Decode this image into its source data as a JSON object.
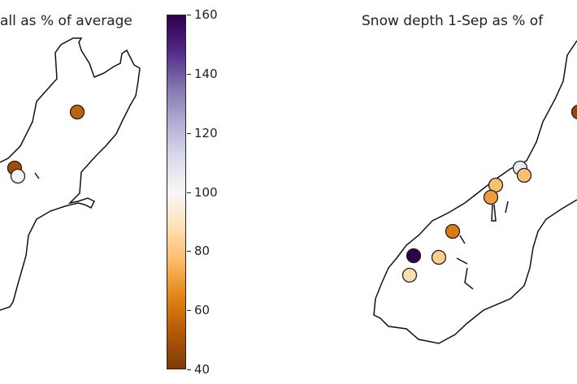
{
  "chart_data": [
    {
      "type": "scatter",
      "title": "all as % of average",
      "values": [
        55,
        48,
        98
      ],
      "colormap": "PuOr"
    },
    {
      "type": "scatter",
      "title": "Snow depth 1-Sep as % of",
      "values": [
        105,
        78,
        78,
        70,
        62,
        160,
        82,
        87,
        45
      ],
      "colormap": "PuOr"
    }
  ],
  "colorbar": {
    "range": [
      40,
      160
    ],
    "ticks": [
      "160",
      "140",
      "120",
      "100",
      "80",
      "60",
      "40"
    ],
    "colors": [
      "#2d004b",
      "#542788",
      "#8073ac",
      "#b2abd2",
      "#d8daeb",
      "#f7f7f7",
      "#fee0b6",
      "#fdb863",
      "#e08214",
      "#b35806",
      "#7f3b08"
    ]
  }
}
